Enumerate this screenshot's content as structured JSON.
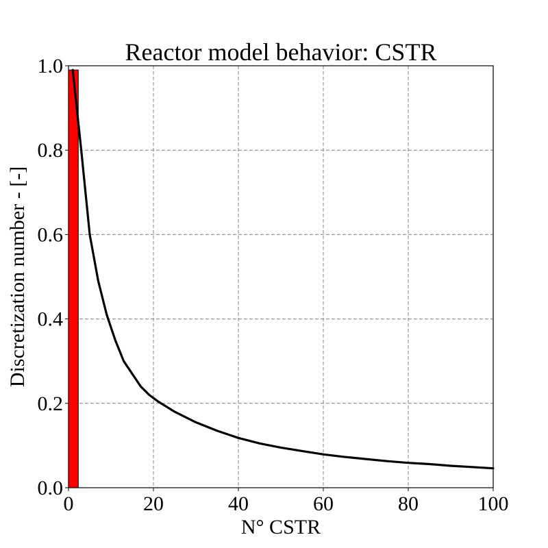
{
  "chart_data": {
    "type": "line",
    "title": "Reactor model behavior: CSTR",
    "xlabel": "N° CSTR",
    "ylabel": "Discretization number - [-]",
    "xlim": [
      0,
      100
    ],
    "ylim": [
      0,
      1
    ],
    "xticks": [
      "0",
      "20",
      "40",
      "60",
      "80",
      "100"
    ],
    "yticks": [
      "0.0",
      "0.2",
      "0.4",
      "0.6",
      "0.8",
      "1.0"
    ],
    "grid": true,
    "series": [
      {
        "color": "#000000",
        "x": [
          1,
          3,
          5,
          7,
          9,
          11,
          13,
          15,
          17,
          19,
          21,
          25,
          30,
          35,
          40,
          45,
          50,
          55,
          60,
          65,
          70,
          75,
          80,
          85,
          90,
          95,
          100
        ],
        "y": [
          0.99,
          0.8,
          0.6,
          0.49,
          0.41,
          0.35,
          0.3,
          0.27,
          0.24,
          0.22,
          0.205,
          0.18,
          0.155,
          0.135,
          0.118,
          0.105,
          0.095,
          0.087,
          0.079,
          0.073,
          0.068,
          0.063,
          0.059,
          0.056,
          0.052,
          0.049,
          0.046
        ]
      }
    ],
    "bars": [
      {
        "x_start": 0,
        "x_end": 2.3,
        "value": 0.99,
        "color": "#ff0000"
      }
    ]
  }
}
